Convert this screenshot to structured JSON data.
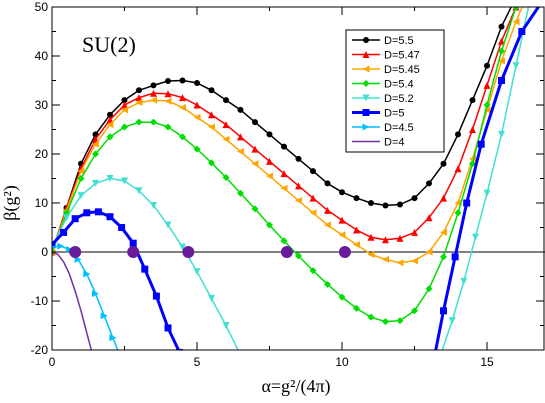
{
  "chart_data": {
    "type": "line",
    "title": "SU(2)",
    "xlabel": "α=g²/(4π)",
    "ylabel": "β(g²)",
    "xlim": [
      0,
      17
    ],
    "ylim": [
      -20,
      50
    ],
    "x_ticks": [
      "0",
      "5",
      "10",
      "15"
    ],
    "x_tick_values": [
      0,
      5,
      10,
      15
    ],
    "y_ticks": [
      "-20",
      "-10",
      "0",
      "10",
      "20",
      "30",
      "40",
      "50"
    ],
    "y_tick_values": [
      -20,
      -10,
      0,
      10,
      20,
      30,
      40,
      50
    ],
    "grid": false,
    "reference_line": {
      "y": 0
    },
    "legend_position": "top-right",
    "series": [
      {
        "name": "D=5.5",
        "color": "#000000",
        "marker": "circle",
        "x": [
          0,
          0.5,
          1,
          1.5,
          2,
          2.5,
          3,
          3.5,
          4,
          4.5,
          5,
          5.5,
          6,
          6.5,
          7,
          7.5,
          8,
          8.5,
          9,
          9.5,
          10,
          10.5,
          11,
          11.5,
          12,
          12.5,
          13,
          13.5,
          14,
          14.5,
          15,
          15.5,
          16,
          16.5
        ],
        "y": [
          0,
          9,
          18,
          24,
          28,
          31,
          33,
          34,
          34.9,
          35,
          34.5,
          33,
          31,
          29,
          26.5,
          24,
          21.5,
          19,
          16.5,
          14,
          12.2,
          11,
          10,
          9.5,
          9.7,
          11,
          14,
          18,
          24,
          31,
          38,
          46,
          52,
          58
        ]
      },
      {
        "name": "D=5.47",
        "color": "#ff0000",
        "marker": "triangle-up",
        "x": [
          0,
          0.5,
          1,
          1.5,
          2,
          2.5,
          3,
          3.5,
          4,
          4.5,
          5,
          5.5,
          6,
          6.5,
          7,
          7.5,
          8,
          8.5,
          9,
          9.5,
          10,
          10.5,
          11,
          11.5,
          12,
          12.5,
          13,
          13.5,
          14,
          14.5,
          15,
          15.5,
          16,
          16.5
        ],
        "y": [
          0,
          9,
          17,
          23,
          27,
          30,
          31.5,
          32.4,
          32.3,
          31.5,
          30,
          28,
          26,
          23.5,
          21,
          18.5,
          16,
          13.5,
          11,
          8.5,
          6.5,
          4.5,
          3,
          2.5,
          2.8,
          4,
          7,
          11,
          17,
          25,
          34,
          43,
          50,
          56
        ]
      },
      {
        "name": "D=5.45",
        "color": "#ffa500",
        "marker": "triangle-left",
        "x": [
          0,
          0.5,
          1,
          1.5,
          2,
          2.5,
          3,
          3.5,
          4,
          4.5,
          5,
          5.5,
          6,
          6.5,
          7,
          7.5,
          8,
          8.5,
          9,
          9.5,
          10,
          10.5,
          11,
          11.5,
          12,
          12.5,
          13,
          13.5,
          14,
          14.5,
          15,
          15.5,
          16,
          16.5
        ],
        "y": [
          0,
          8.5,
          16.5,
          22,
          26,
          29,
          30.5,
          31,
          30.8,
          29.5,
          27.5,
          25.5,
          23,
          20.5,
          18,
          15.5,
          13,
          10.5,
          8,
          5.5,
          3.5,
          1.5,
          -0.5,
          -1.5,
          -2.2,
          -1.8,
          0,
          4,
          10,
          19,
          29,
          39,
          47,
          54
        ]
      },
      {
        "name": "D=5.4",
        "color": "#00dd00",
        "marker": "diamond",
        "x": [
          0,
          0.5,
          1,
          1.5,
          2,
          2.5,
          3,
          3.5,
          4,
          4.5,
          5,
          5.5,
          6,
          6.5,
          7,
          7.5,
          8,
          8.5,
          9,
          9.5,
          10,
          10.5,
          11,
          11.5,
          12,
          12.5,
          13,
          13.5,
          14,
          14.5,
          15,
          15.5,
          16
        ],
        "y": [
          0,
          8,
          15,
          20,
          23.5,
          25.5,
          26.5,
          26.5,
          25.5,
          23.5,
          21,
          18.2,
          15.2,
          12,
          8.8,
          5.5,
          2.3,
          -0.8,
          -3.8,
          -6.6,
          -9.2,
          -11.5,
          -13.3,
          -14.2,
          -14,
          -12,
          -7.5,
          -1,
          8,
          18,
          30,
          41,
          50
        ]
      },
      {
        "name": "D=5.2",
        "color": "#40e0d0",
        "marker": "triangle-down",
        "x": [
          0,
          0.5,
          1,
          1.5,
          2,
          2.5,
          3,
          3.5,
          4,
          4.5,
          5,
          5.5,
          6,
          6.5
        ],
        "y": [
          1,
          7,
          11.5,
          14,
          15,
          14.5,
          12.5,
          9.5,
          5.5,
          1,
          -4,
          -9.5,
          -15,
          -21
        ]
      },
      {
        "name": "D=5.2",
        "color": "#40e0d0",
        "marker": "triangle-down",
        "x": [
          13.4,
          13.8,
          14.2,
          14.6,
          15,
          15.5,
          16,
          16.5
        ],
        "y": [
          -21,
          -14,
          -6,
          3,
          12,
          24,
          38,
          52
        ]
      },
      {
        "name": "D=5",
        "color": "#0000ff",
        "marker": "square",
        "x": [
          0,
          0.4,
          0.8,
          1.2,
          1.6,
          2,
          2.4,
          2.8,
          3.2,
          3.6,
          4,
          4.4,
          4.8
        ],
        "y": [
          1.5,
          4,
          6.8,
          8,
          8.2,
          7.2,
          5,
          1.8,
          -3.5,
          -9,
          -15.5,
          -20.5,
          -22
        ]
      },
      {
        "name": "D=5",
        "color": "#0000ff",
        "marker": "square",
        "x": [
          13.2,
          13.5,
          13.9,
          14.3,
          14.8,
          15.5,
          16.2,
          17
        ],
        "y": [
          -21,
          -12,
          -1,
          10,
          22,
          35,
          45,
          52
        ]
      },
      {
        "name": "D=4.5",
        "color": "#00bfff",
        "marker": "triangle-right",
        "x": [
          0,
          0.3,
          0.6,
          0.9,
          1.2,
          1.5,
          1.8,
          2.1,
          2.4
        ],
        "y": [
          1,
          1.2,
          0.5,
          -1.5,
          -4.5,
          -8.5,
          -13,
          -17.5,
          -22
        ]
      },
      {
        "name": "D=4",
        "color": "#7030a0",
        "marker": "none",
        "x": [
          0,
          0.2,
          0.4,
          0.6,
          0.8,
          1.0,
          1.2,
          1.4
        ],
        "y": [
          0,
          -0.5,
          -2,
          -4.5,
          -8,
          -12,
          -16.5,
          -21
        ]
      }
    ],
    "zero_crossings": {
      "color": "#6a1b9a",
      "x": [
        0.8,
        2.8,
        4.7,
        8.1,
        10.1
      ],
      "y": [
        0,
        0,
        0,
        0,
        0
      ]
    }
  }
}
